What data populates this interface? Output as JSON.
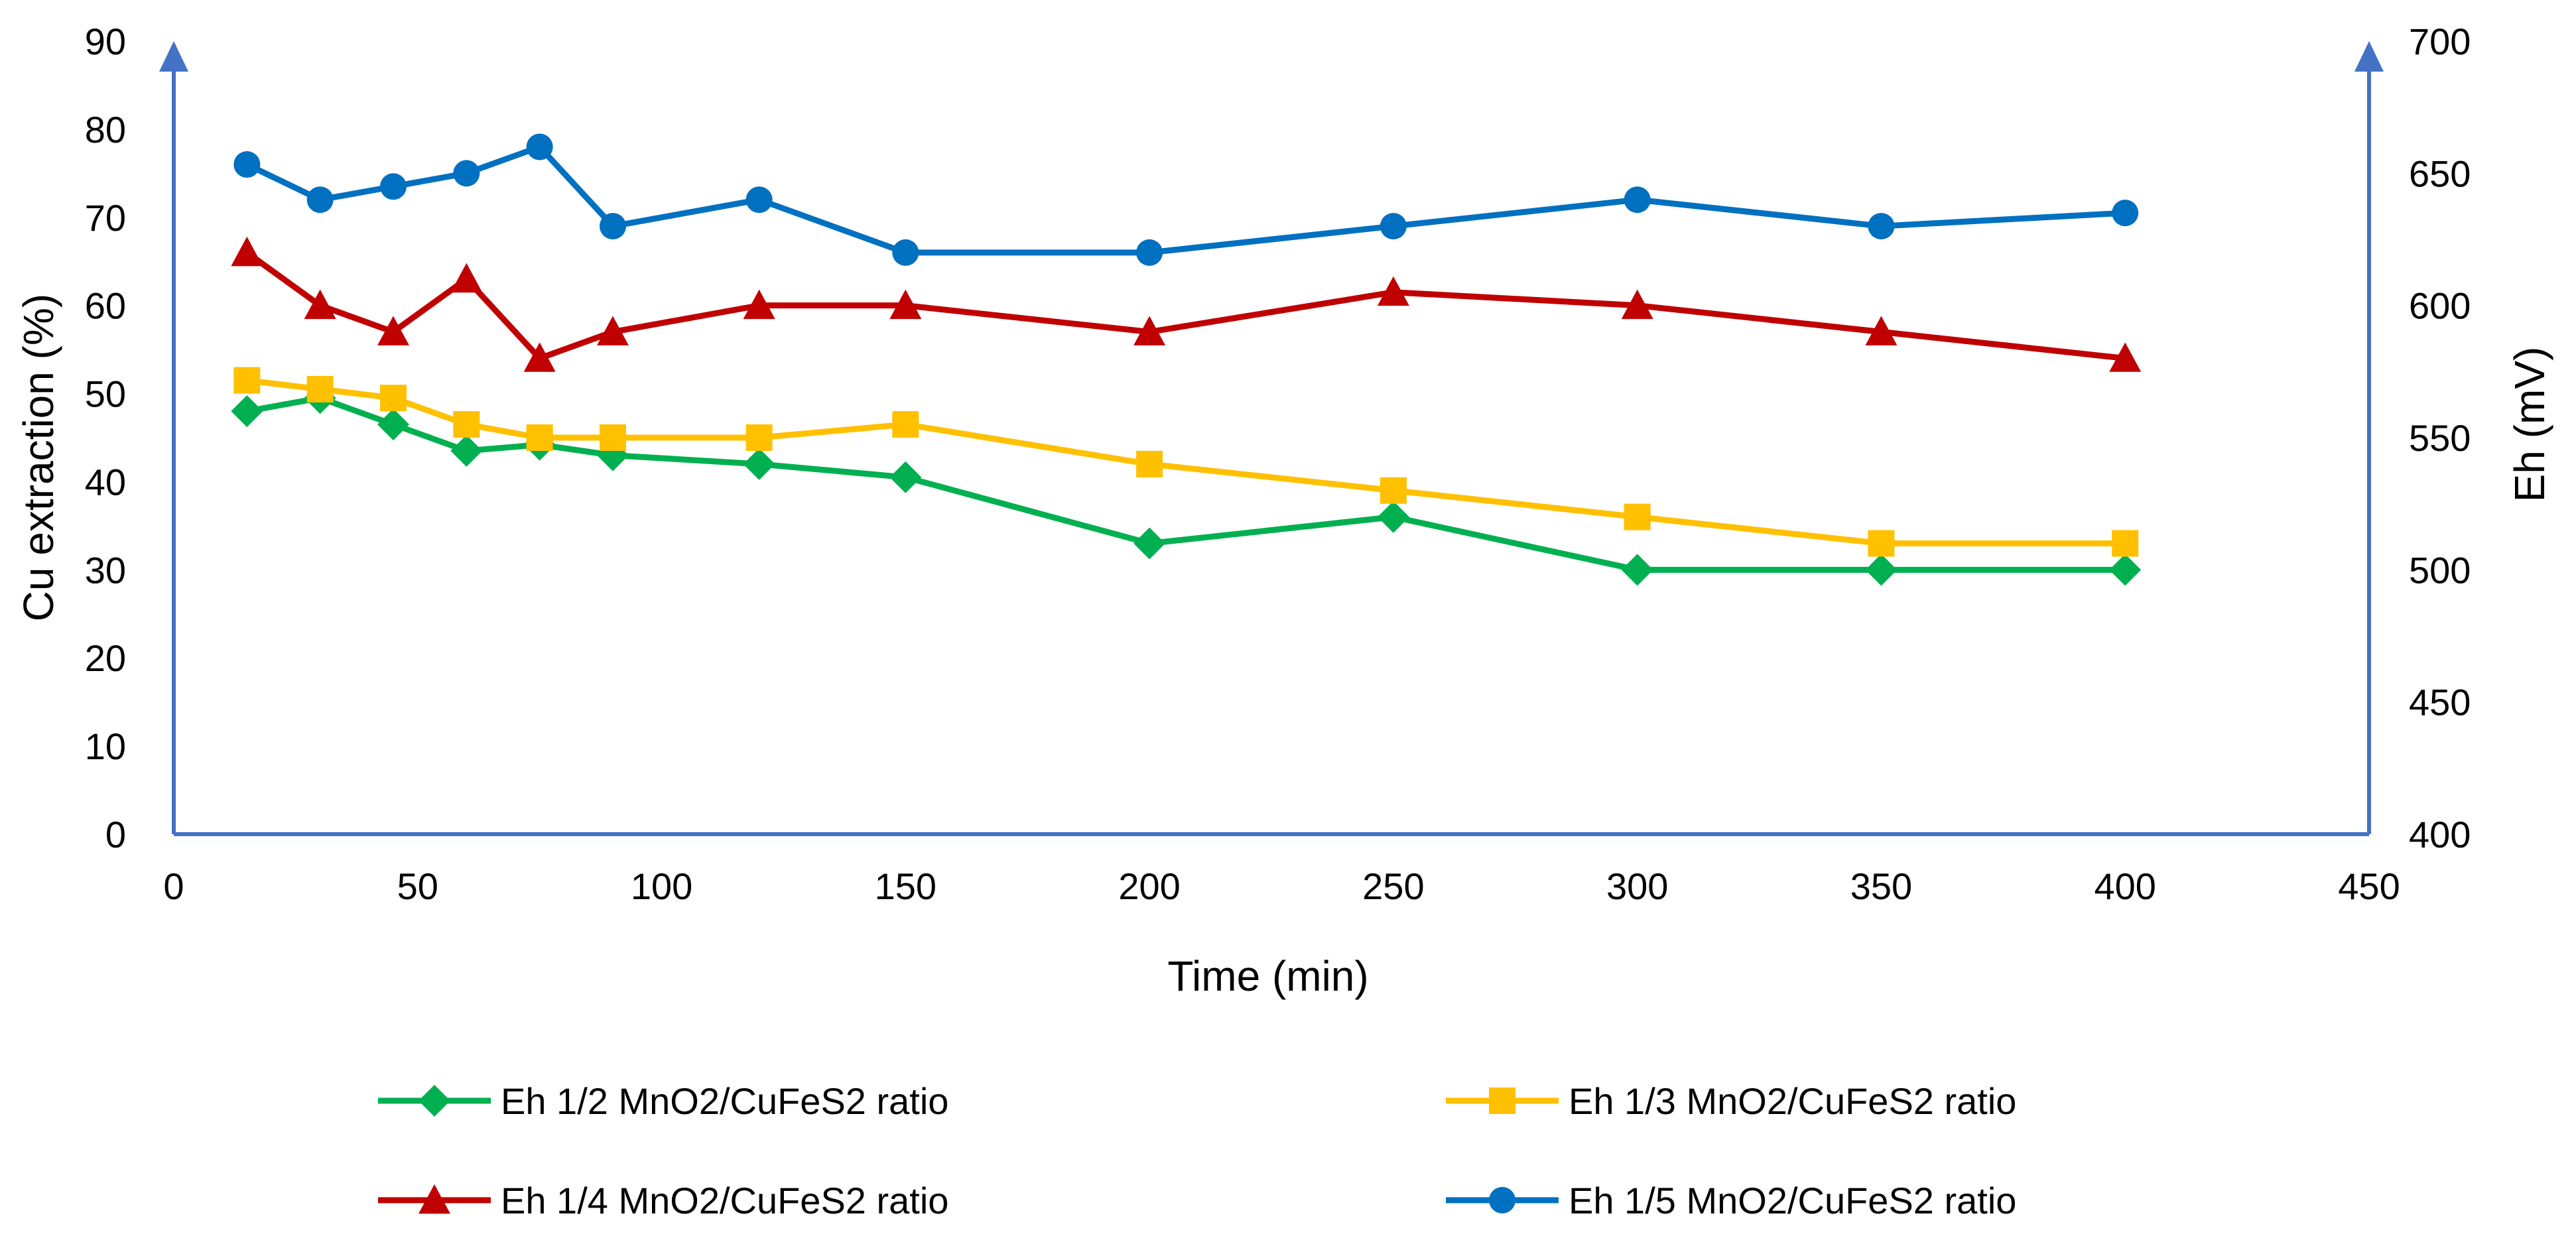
{
  "chart_data": {
    "type": "line",
    "title": "",
    "xlabel": "Time (min)",
    "ylabel_left": "Cu extraction (%)",
    "ylabel_right": "Eh (mV)",
    "xlim": [
      0,
      450
    ],
    "xticks": [
      0,
      50,
      100,
      150,
      200,
      250,
      300,
      350,
      400,
      450
    ],
    "ylim_left": [
      0,
      90
    ],
    "yticks_left": [
      0,
      10,
      20,
      30,
      40,
      50,
      60,
      70,
      80,
      90
    ],
    "ylim_right": [
      400,
      700
    ],
    "yticks_right": [
      400,
      450,
      500,
      550,
      600,
      650,
      700
    ],
    "grid": false,
    "legend_position": "bottom",
    "series": [
      {
        "name": "Eh 1/2 MnO2/CuFeS2 ratio",
        "color": "#00B050",
        "marker": "diamond",
        "axis": "left",
        "x": [
          15,
          30,
          45,
          60,
          75,
          90,
          120,
          150,
          200,
          250,
          300,
          350,
          400
        ],
        "y": [
          48,
          49.5,
          46.5,
          43.5,
          44.2,
          43,
          42,
          40.5,
          33,
          36,
          30,
          30,
          30
        ]
      },
      {
        "name": "Eh 1/3 MnO2/CuFeS2 ratio",
        "color": "#FFC000",
        "marker": "square",
        "axis": "left",
        "x": [
          15,
          30,
          45,
          60,
          75,
          90,
          120,
          150,
          200,
          250,
          300,
          350,
          400
        ],
        "y": [
          51.5,
          50.5,
          49.5,
          46.5,
          45,
          45,
          45,
          46.5,
          42,
          39,
          36,
          33,
          33
        ]
      },
      {
        "name": "Eh 1/4 MnO2/CuFeS2 ratio",
        "color": "#C00000",
        "marker": "triangle",
        "axis": "left",
        "x": [
          15,
          30,
          45,
          60,
          75,
          90,
          120,
          150,
          200,
          250,
          300,
          350,
          400
        ],
        "y": [
          66,
          60,
          57,
          63,
          54,
          57,
          60,
          60,
          57,
          61.5,
          60,
          57,
          54
        ]
      },
      {
        "name": "Eh 1/5 MnO2/CuFeS2 ratio",
        "color": "#0070C0",
        "marker": "circle",
        "axis": "left",
        "x": [
          15,
          30,
          45,
          60,
          75,
          90,
          120,
          150,
          200,
          250,
          300,
          350,
          400
        ],
        "y": [
          76,
          72,
          73.5,
          75,
          78,
          69,
          72,
          66,
          66,
          69,
          72,
          69,
          70.5
        ]
      }
    ],
    "axis_color": "#4472C4"
  }
}
